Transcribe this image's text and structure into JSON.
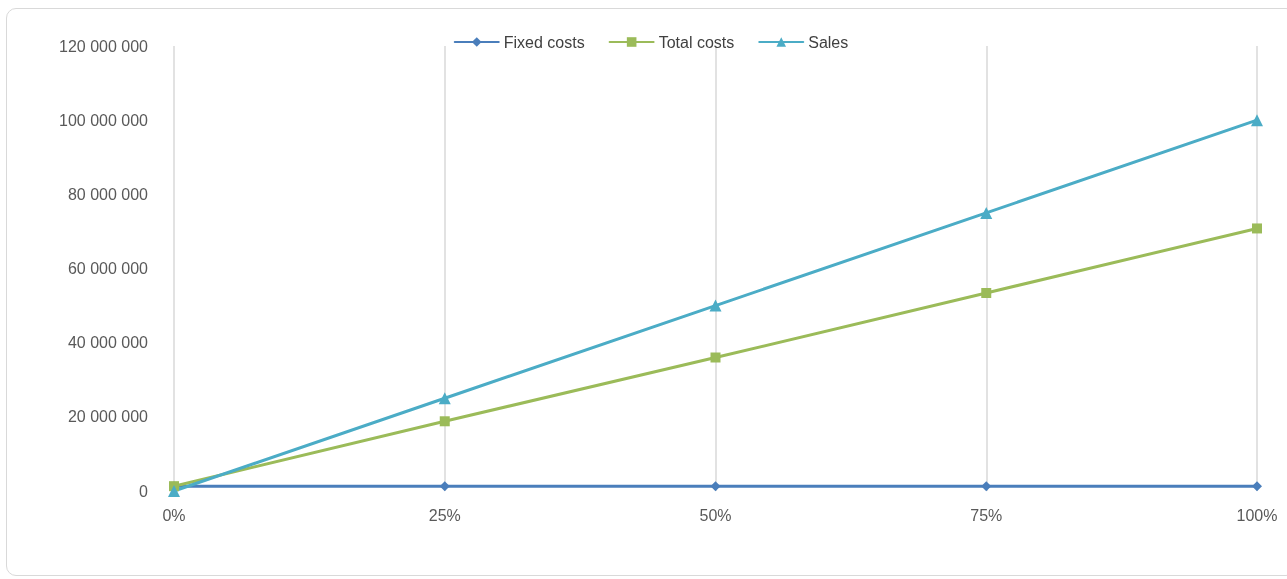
{
  "chart_data": {
    "type": "line",
    "categories": [
      "0%",
      "25%",
      "50%",
      "75%",
      "100%"
    ],
    "series": [
      {
        "name": "Fixed costs",
        "color": "#4a7ebb",
        "marker": "diamond",
        "values": [
          1300000,
          1300000,
          1300000,
          1300000,
          1300000
        ]
      },
      {
        "name": "Total costs",
        "color": "#9bbb59",
        "marker": "square",
        "values": [
          1300000,
          18800000,
          36000000,
          53400000,
          70800000
        ]
      },
      {
        "name": "Sales",
        "color": "#4bacc6",
        "marker": "triangle",
        "values": [
          0,
          25000000,
          50000000,
          75000000,
          100000000
        ]
      }
    ],
    "ylim": [
      0,
      120000000
    ],
    "yticks": [
      {
        "value": 0,
        "label": "0"
      },
      {
        "value": 20000000,
        "label": "20 000 000"
      },
      {
        "value": 40000000,
        "label": "40 000 000"
      },
      {
        "value": 60000000,
        "label": "60 000 000"
      },
      {
        "value": 80000000,
        "label": "80 000 000"
      },
      {
        "value": 100000000,
        "label": "100 000 000"
      },
      {
        "value": 120000000,
        "label": "120 000 000"
      }
    ],
    "grid": "x",
    "legend": "top",
    "line_style": "solid"
  }
}
